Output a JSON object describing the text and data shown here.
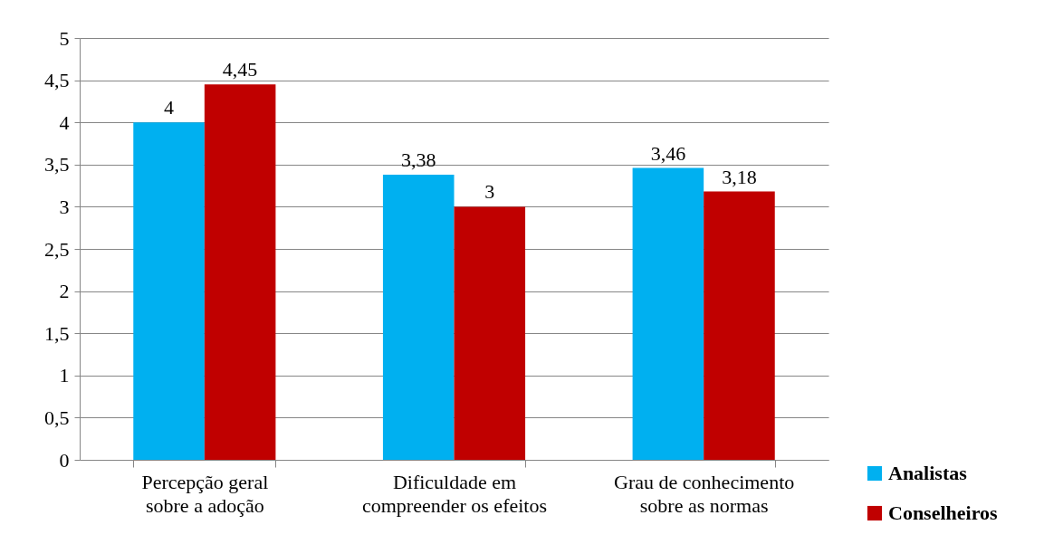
{
  "chart_data": {
    "type": "bar",
    "categories": [
      "Percepção geral sobre a adoção",
      "Dificuldade em compreender os efeitos",
      "Grau de conhecimento sobre as normas"
    ],
    "series": [
      {
        "name": "Analistas",
        "color": "#00b0f0",
        "values": [
          4,
          3.38,
          3.46
        ],
        "value_labels": [
          "4",
          "3,38",
          "3,46"
        ]
      },
      {
        "name": "Conselheiros",
        "color": "#c00000",
        "values": [
          4.45,
          3,
          3.18
        ],
        "value_labels": [
          "4,45",
          "3",
          "3,18"
        ]
      }
    ],
    "ylim": [
      0,
      5
    ],
    "yticks": [
      0,
      {
        "value": 0.5,
        "label": "0,5"
      },
      1,
      {
        "value": 1.5,
        "label": "1,5"
      },
      2,
      {
        "value": 2.5,
        "label": "2,5"
      },
      3,
      {
        "value": 3.5,
        "label": "3,5"
      },
      4,
      {
        "value": 4.5,
        "label": "4,5"
      },
      5
    ],
    "grid": "y",
    "legend": "bottom right"
  }
}
